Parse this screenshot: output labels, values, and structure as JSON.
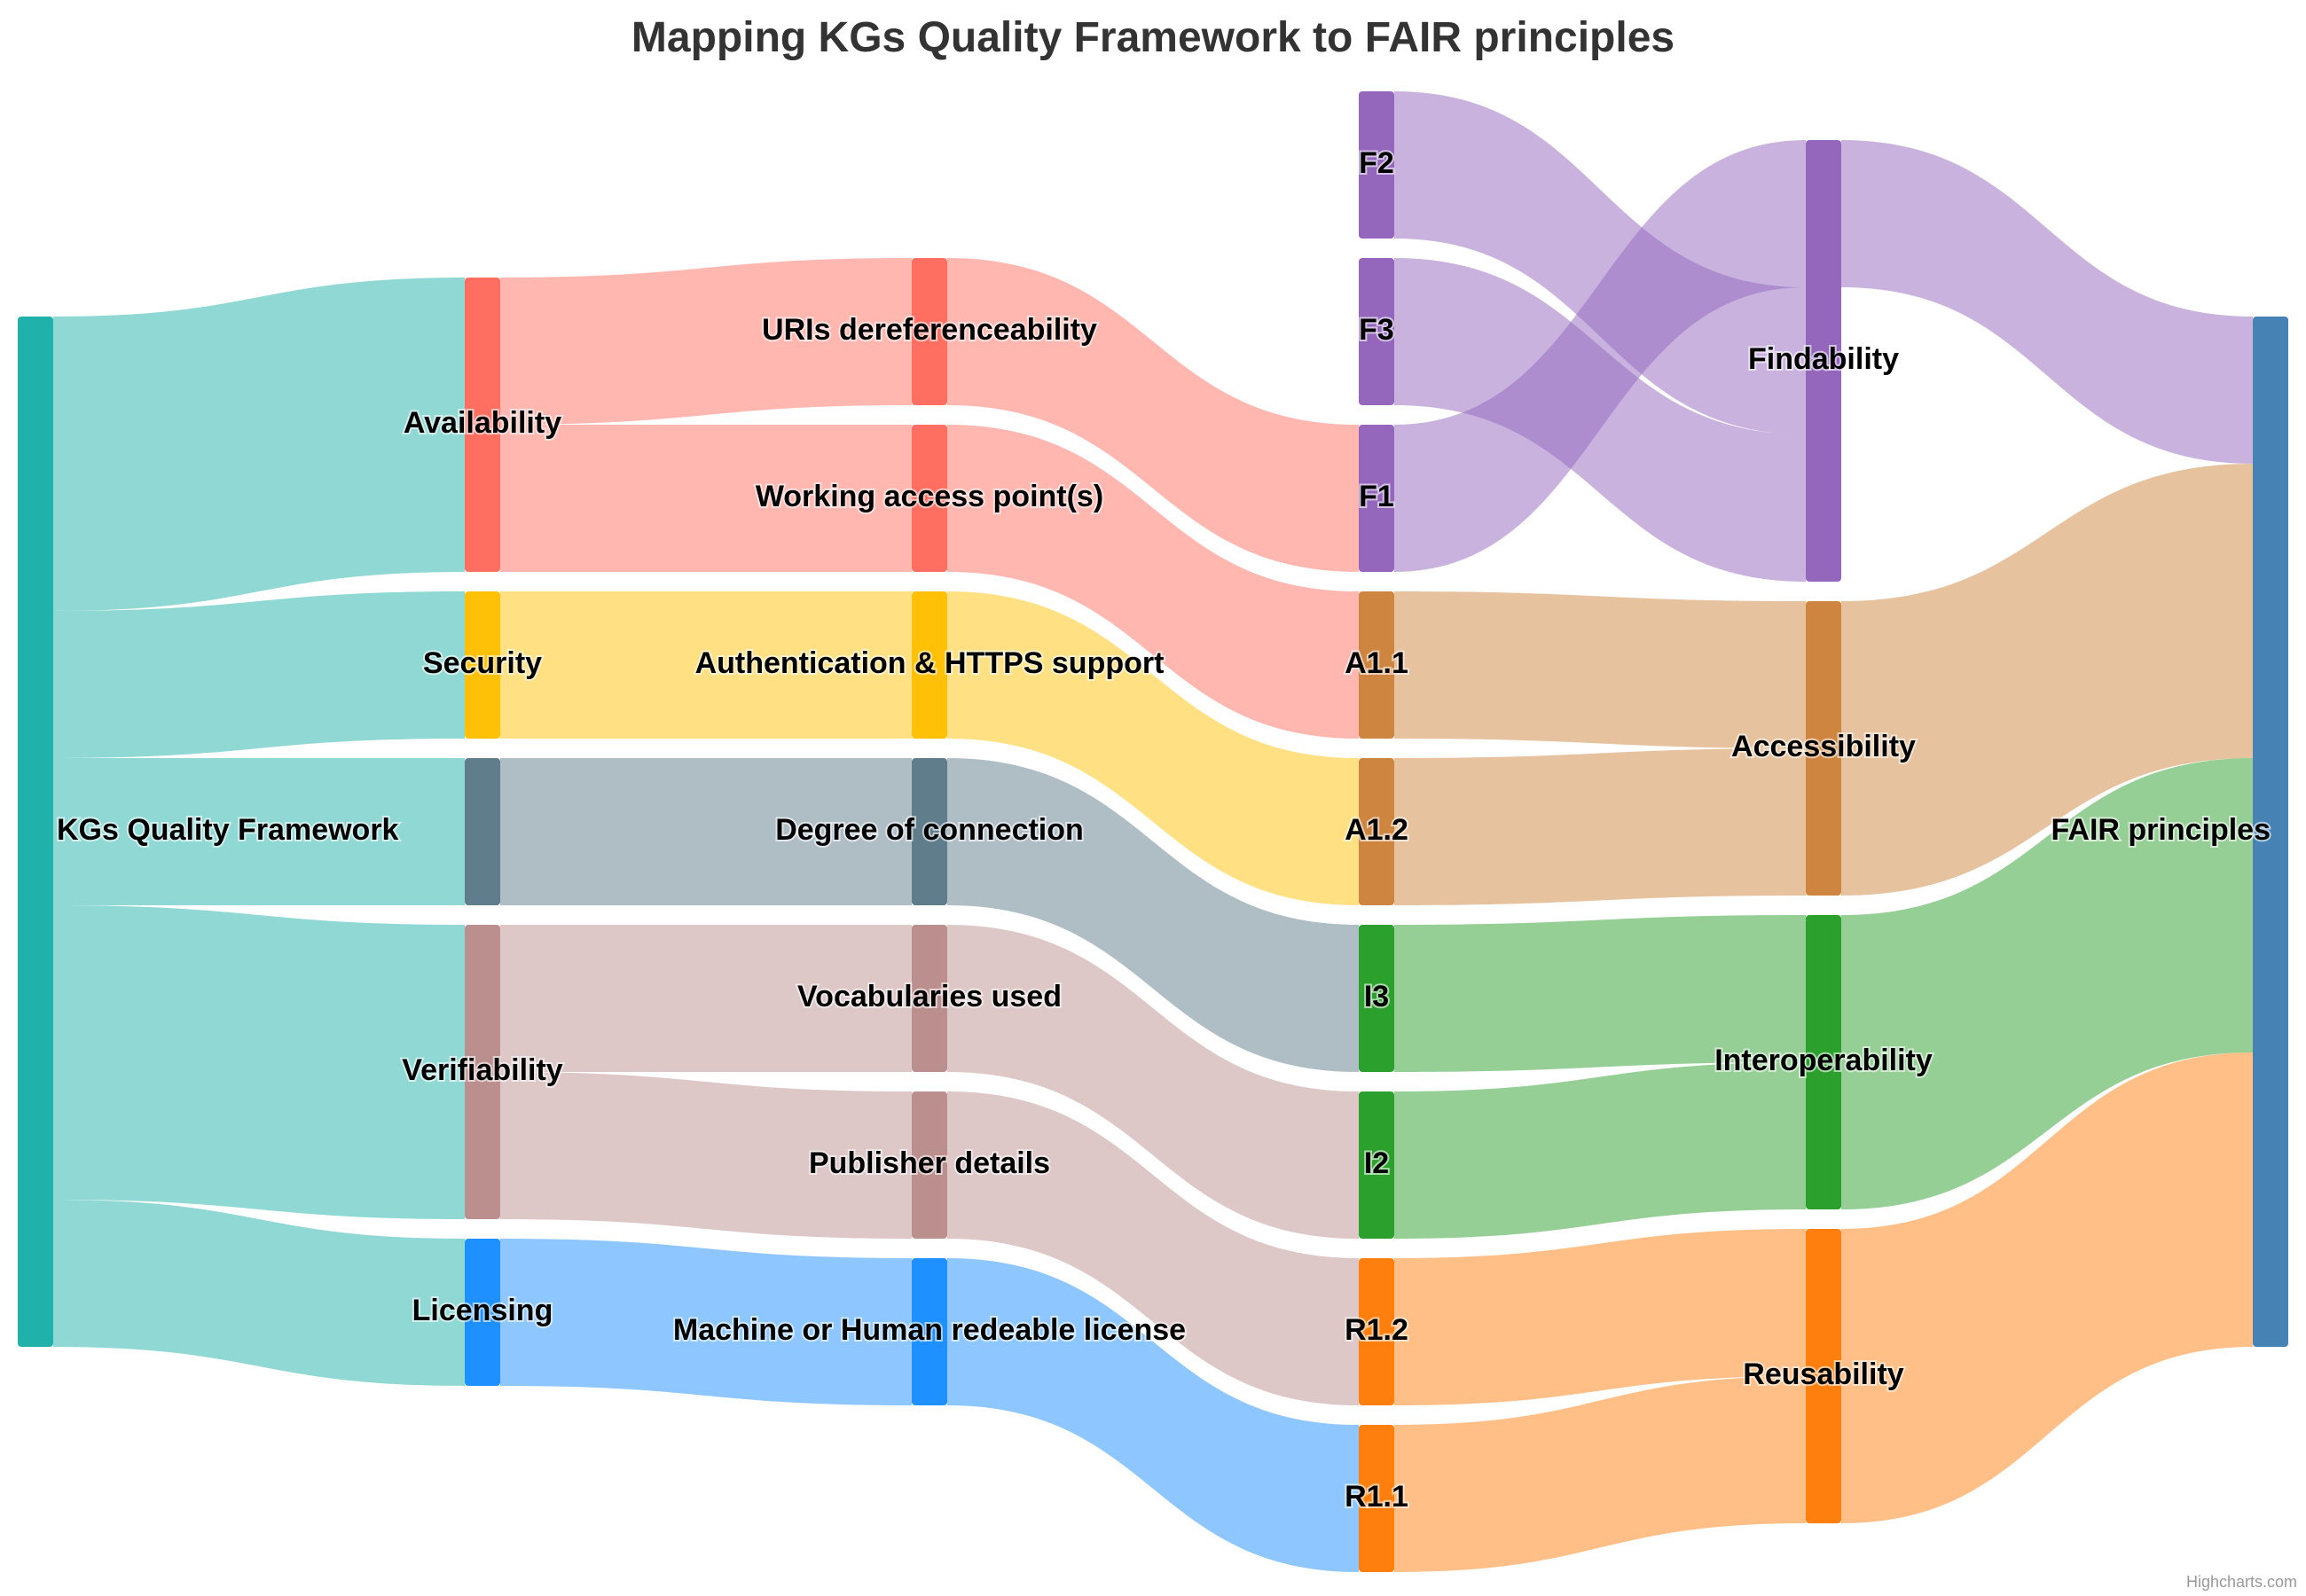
{
  "chart_data": {
    "type": "sankey",
    "title": "Mapping KGs Quality Framework to FAIR principles",
    "credits": "Highcharts.com",
    "columns": [
      [
        {
          "name": "KGs Quality Framework",
          "color": "#20b2aa"
        }
      ],
      [
        {
          "name": "Availability",
          "color": "#ff6f61"
        },
        {
          "name": "Security",
          "color": "#ffc107"
        },
        {
          "name": null,
          "color": "#607d8b"
        },
        {
          "name": "Verifiability",
          "color": "#bc8f8f"
        },
        {
          "name": "Licensing",
          "color": "#1e90ff"
        }
      ],
      [
        {
          "name": "URIs dereferenceability",
          "color": "#ff6f61"
        },
        {
          "name": "Working access point(s)",
          "color": "#ff6f61"
        },
        {
          "name": "Authentication & HTTPS support",
          "color": "#ffc107"
        },
        {
          "name": "Degree of connection",
          "color": "#607d8b"
        },
        {
          "name": "Vocabularies used",
          "color": "#bc8f8f"
        },
        {
          "name": "Publisher details",
          "color": "#bc8f8f"
        },
        {
          "name": "Machine or Human redeable license",
          "color": "#1e90ff"
        }
      ],
      [
        {
          "name": "F2",
          "color": "#9467bd"
        },
        {
          "name": "F3",
          "color": "#9467bd"
        },
        {
          "name": "F1",
          "color": "#9467bd"
        },
        {
          "name": "A1.1",
          "color": "#cd853f"
        },
        {
          "name": "A1.2",
          "color": "#cd853f"
        },
        {
          "name": "I3",
          "color": "#2ca02c"
        },
        {
          "name": "I2",
          "color": "#2ca02c"
        },
        {
          "name": "R1.2",
          "color": "#ff7f0e"
        },
        {
          "name": "R1.1",
          "color": "#ff7f0e"
        }
      ],
      [
        {
          "name": "Findability",
          "color": "#9467bd"
        },
        {
          "name": "Accessibility",
          "color": "#cd853f"
        },
        {
          "name": "Interoperability",
          "color": "#2ca02c"
        },
        {
          "name": "Reusability",
          "color": "#ff7f0e"
        }
      ],
      [
        {
          "name": "FAIR principles",
          "color": "#4682b4"
        }
      ]
    ],
    "links": [
      {
        "from": "KGs Quality Framework",
        "to": "Availability",
        "weight": 2
      },
      {
        "from": "KGs Quality Framework",
        "to": "Security",
        "weight": 1
      },
      {
        "from": "KGs Quality Framework",
        "to": null,
        "weight": 1
      },
      {
        "from": "KGs Quality Framework",
        "to": "Verifiability",
        "weight": 2
      },
      {
        "from": "KGs Quality Framework",
        "to": "Licensing",
        "weight": 1
      },
      {
        "from": "Availability",
        "to": "URIs dereferenceability",
        "weight": 1
      },
      {
        "from": "Availability",
        "to": "Working access point(s)",
        "weight": 1
      },
      {
        "from": "Security",
        "to": "Authentication & HTTPS support",
        "weight": 1
      },
      {
        "from": null,
        "to": "Degree of connection",
        "weight": 1
      },
      {
        "from": "Verifiability",
        "to": "Vocabularies used",
        "weight": 1
      },
      {
        "from": "Verifiability",
        "to": "Publisher details",
        "weight": 1
      },
      {
        "from": "Licensing",
        "to": "Machine or Human redeable license",
        "weight": 1
      },
      {
        "from": "URIs dereferenceability",
        "to": "F1",
        "weight": 1
      },
      {
        "from": "Working access point(s)",
        "to": "A1.1",
        "weight": 1
      },
      {
        "from": "Authentication & HTTPS support",
        "to": "A1.2",
        "weight": 1
      },
      {
        "from": "Degree of connection",
        "to": "I3",
        "weight": 1
      },
      {
        "from": "Vocabularies used",
        "to": "I2",
        "weight": 1
      },
      {
        "from": "Publisher details",
        "to": "R1.2",
        "weight": 1
      },
      {
        "from": "Machine or Human redeable license",
        "to": "R1.1",
        "weight": 1
      },
      {
        "from": "F1",
        "to": "Findability",
        "weight": 1
      },
      {
        "from": "F2",
        "to": "Findability",
        "weight": 1
      },
      {
        "from": "F3",
        "to": "Findability",
        "weight": 1
      },
      {
        "from": "A1.1",
        "to": "Accessibility",
        "weight": 1
      },
      {
        "from": "A1.2",
        "to": "Accessibility",
        "weight": 1
      },
      {
        "from": "I3",
        "to": "Interoperability",
        "weight": 1
      },
      {
        "from": "I2",
        "to": "Interoperability",
        "weight": 1
      },
      {
        "from": "R1.2",
        "to": "Reusability",
        "weight": 1
      },
      {
        "from": "R1.1",
        "to": "Reusability",
        "weight": 1
      },
      {
        "from": "Findability",
        "to": "FAIR principles",
        "weight": 1
      },
      {
        "from": "Accessibility",
        "to": "FAIR principles",
        "weight": 2
      },
      {
        "from": "Interoperability",
        "to": "FAIR principles",
        "weight": 2
      },
      {
        "from": "Reusability",
        "to": "FAIR principles",
        "weight": 2
      }
    ]
  }
}
